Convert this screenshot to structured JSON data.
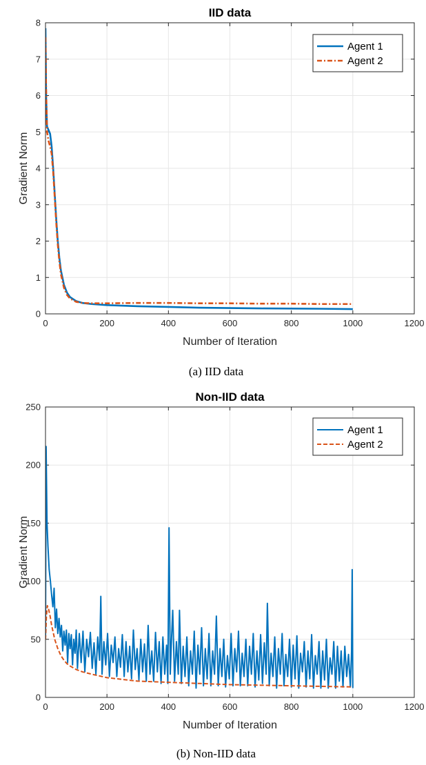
{
  "chart_data": [
    {
      "type": "line",
      "title": "IID data",
      "xlabel": "Number of Iteration",
      "ylabel": "Gradient Norm",
      "caption": "(a) IID data",
      "xlim": [
        0,
        1200
      ],
      "ylim": [
        0,
        8
      ],
      "xticks": [
        "0",
        "200",
        "400",
        "600",
        "800",
        "1000",
        "1200"
      ],
      "yticks": [
        "0",
        "1",
        "2",
        "3",
        "4",
        "5",
        "6",
        "7",
        "8"
      ],
      "grid": true,
      "legend_position": "top-right",
      "series": [
        {
          "name": "Agent 1",
          "color": "#0072BD",
          "style": "solid",
          "points": [
            [
              0,
              7.85
            ],
            [
              2,
              6.0
            ],
            [
              5,
              5.15
            ],
            [
              10,
              5.05
            ],
            [
              15,
              4.95
            ],
            [
              20,
              4.6
            ],
            [
              25,
              4.0
            ],
            [
              30,
              3.3
            ],
            [
              35,
              2.6
            ],
            [
              40,
              2.0
            ],
            [
              45,
              1.55
            ],
            [
              50,
              1.2
            ],
            [
              60,
              0.8
            ],
            [
              70,
              0.58
            ],
            [
              80,
              0.46
            ],
            [
              100,
              0.35
            ],
            [
              120,
              0.3
            ],
            [
              150,
              0.27
            ],
            [
              200,
              0.24
            ],
            [
              300,
              0.21
            ],
            [
              400,
              0.19
            ],
            [
              500,
              0.17
            ],
            [
              600,
              0.16
            ],
            [
              700,
              0.15
            ],
            [
              800,
              0.145
            ],
            [
              900,
              0.14
            ],
            [
              1000,
              0.13
            ]
          ]
        },
        {
          "name": "Agent 2",
          "color": "#D95319",
          "style": "dashdot",
          "points": [
            [
              0,
              7.6
            ],
            [
              2,
              6.2
            ],
            [
              5,
              5.0
            ],
            [
              10,
              4.75
            ],
            [
              15,
              4.6
            ],
            [
              20,
              4.4
            ],
            [
              25,
              3.9
            ],
            [
              30,
              3.2
            ],
            [
              35,
              2.5
            ],
            [
              40,
              1.9
            ],
            [
              45,
              1.45
            ],
            [
              50,
              1.1
            ],
            [
              60,
              0.72
            ],
            [
              70,
              0.52
            ],
            [
              80,
              0.42
            ],
            [
              100,
              0.33
            ],
            [
              120,
              0.3
            ],
            [
              150,
              0.29
            ],
            [
              200,
              0.29
            ],
            [
              300,
              0.3
            ],
            [
              400,
              0.3
            ],
            [
              500,
              0.29
            ],
            [
              600,
              0.29
            ],
            [
              700,
              0.28
            ],
            [
              800,
              0.28
            ],
            [
              900,
              0.27
            ],
            [
              1000,
              0.27
            ]
          ]
        }
      ]
    },
    {
      "type": "line",
      "title": "Non-IID data",
      "xlabel": "Number of Iteration",
      "ylabel": "Gradient Norm",
      "caption": "(b) Non-IID data",
      "xlim": [
        0,
        1200
      ],
      "ylim": [
        0,
        250
      ],
      "xticks": [
        "0",
        "200",
        "400",
        "600",
        "800",
        "1000",
        "1200"
      ],
      "yticks": [
        "0",
        "50",
        "100",
        "150",
        "200",
        "250"
      ],
      "grid": true,
      "legend_position": "top-right",
      "series": [
        {
          "name": "Agent 1",
          "color": "#0072BD",
          "style": "solid",
          "points": [
            [
              0,
              50
            ],
            [
              2,
              216
            ],
            [
              5,
              150
            ],
            [
              8,
              130
            ],
            [
              12,
              110
            ],
            [
              16,
              100
            ],
            [
              20,
              88
            ],
            [
              24,
              78
            ],
            [
              28,
              94
            ],
            [
              32,
              60
            ],
            [
              36,
              76
            ],
            [
              40,
              55
            ],
            [
              44,
              68
            ],
            [
              48,
              52
            ],
            [
              52,
              62
            ],
            [
              56,
              40
            ],
            [
              60,
              57
            ],
            [
              64,
              45
            ],
            [
              68,
              58
            ],
            [
              72,
              30
            ],
            [
              76,
              55
            ],
            [
              80,
              42
            ],
            [
              84,
              54
            ],
            [
              88,
              28
            ],
            [
              92,
              50
            ],
            [
              96,
              38
            ],
            [
              100,
              58
            ],
            [
              104,
              25
            ],
            [
              110,
              55
            ],
            [
              116,
              30
            ],
            [
              122,
              57
            ],
            [
              128,
              22
            ],
            [
              134,
              50
            ],
            [
              140,
              35
            ],
            [
              146,
              56
            ],
            [
              152,
              25
            ],
            [
              158,
              47
            ],
            [
              164,
              20
            ],
            [
              170,
              52
            ],
            [
              176,
              32
            ],
            [
              180,
              87
            ],
            [
              184,
              20
            ],
            [
              190,
              48
            ],
            [
              196,
              28
            ],
            [
              202,
              55
            ],
            [
              208,
              18
            ],
            [
              214,
              45
            ],
            [
              220,
              30
            ],
            [
              226,
              52
            ],
            [
              232,
              18
            ],
            [
              238,
              42
            ],
            [
              244,
              26
            ],
            [
              250,
              54
            ],
            [
              256,
              18
            ],
            [
              262,
              48
            ],
            [
              268,
              22
            ],
            [
              274,
              44
            ],
            [
              280,
              16
            ],
            [
              286,
              58
            ],
            [
              292,
              24
            ],
            [
              298,
              42
            ],
            [
              304,
              15
            ],
            [
              310,
              50
            ],
            [
              316,
              22
            ],
            [
              322,
              46
            ],
            [
              328,
              14
            ],
            [
              334,
              62
            ],
            [
              340,
              20
            ],
            [
              346,
              40
            ],
            [
              352,
              14
            ],
            [
              358,
              56
            ],
            [
              364,
              22
            ],
            [
              370,
              48
            ],
            [
              376,
              12
            ],
            [
              382,
              52
            ],
            [
              388,
              20
            ],
            [
              394,
              45
            ],
            [
              398,
              12
            ],
            [
              402,
              146
            ],
            [
              406,
              20
            ],
            [
              410,
              50
            ],
            [
              414,
              75
            ],
            [
              420,
              14
            ],
            [
              426,
              48
            ],
            [
              432,
              20
            ],
            [
              436,
              75
            ],
            [
              442,
              12
            ],
            [
              448,
              44
            ],
            [
              454,
              18
            ],
            [
              460,
              52
            ],
            [
              466,
              10
            ],
            [
              472,
              40
            ],
            [
              478,
              20
            ],
            [
              484,
              57
            ],
            [
              490,
              8
            ],
            [
              496,
              45
            ],
            [
              502,
              20
            ],
            [
              508,
              60
            ],
            [
              514,
              10
            ],
            [
              520,
              42
            ],
            [
              526,
              16
            ],
            [
              532,
              55
            ],
            [
              538,
              10
            ],
            [
              544,
              40
            ],
            [
              550,
              20
            ],
            [
              556,
              70
            ],
            [
              562,
              10
            ],
            [
              568,
              42
            ],
            [
              574,
              18
            ],
            [
              580,
              50
            ],
            [
              586,
              9
            ],
            [
              592,
              36
            ],
            [
              598,
              16
            ],
            [
              604,
              55
            ],
            [
              610,
              10
            ],
            [
              616,
              42
            ],
            [
              622,
              22
            ],
            [
              628,
              57
            ],
            [
              634,
              10
            ],
            [
              640,
              38
            ],
            [
              646,
              18
            ],
            [
              652,
              50
            ],
            [
              658,
              10
            ],
            [
              664,
              44
            ],
            [
              670,
              20
            ],
            [
              676,
              55
            ],
            [
              682,
              9
            ],
            [
              688,
              40
            ],
            [
              694,
              15
            ],
            [
              700,
              54
            ],
            [
              706,
              12
            ],
            [
              712,
              47
            ],
            [
              718,
              20
            ],
            [
              722,
              81
            ],
            [
              728,
              10
            ],
            [
              734,
              38
            ],
            [
              740,
              18
            ],
            [
              746,
              52
            ],
            [
              752,
              8
            ],
            [
              758,
              42
            ],
            [
              764,
              20
            ],
            [
              770,
              55
            ],
            [
              776,
              10
            ],
            [
              782,
              37
            ],
            [
              788,
              18
            ],
            [
              794,
              50
            ],
            [
              800,
              9
            ],
            [
              806,
              45
            ],
            [
              812,
              16
            ],
            [
              818,
              53
            ],
            [
              824,
              8
            ],
            [
              830,
              38
            ],
            [
              836,
              22
            ],
            [
              842,
              48
            ],
            [
              848,
              9
            ],
            [
              854,
              40
            ],
            [
              860,
              16
            ],
            [
              866,
              54
            ],
            [
              872,
              8
            ],
            [
              878,
              36
            ],
            [
              884,
              20
            ],
            [
              890,
              48
            ],
            [
              896,
              8
            ],
            [
              902,
              40
            ],
            [
              908,
              15
            ],
            [
              914,
              50
            ],
            [
              920,
              8
            ],
            [
              926,
              34
            ],
            [
              932,
              20
            ],
            [
              938,
              48
            ],
            [
              944,
              8
            ],
            [
              950,
              44
            ],
            [
              956,
              14
            ],
            [
              962,
              40
            ],
            [
              968,
              9
            ],
            [
              974,
              44
            ],
            [
              980,
              18
            ],
            [
              986,
              37
            ],
            [
              992,
              9
            ],
            [
              996,
              40
            ],
            [
              998,
              110
            ],
            [
              1000,
              8
            ]
          ]
        },
        {
          "name": "Agent 2",
          "color": "#D95319",
          "style": "dashed",
          "points": [
            [
              0,
              50
            ],
            [
              3,
              70
            ],
            [
              6,
              79
            ],
            [
              10,
              76
            ],
            [
              15,
              70
            ],
            [
              20,
              62
            ],
            [
              30,
              50
            ],
            [
              40,
              42
            ],
            [
              50,
              36
            ],
            [
              60,
              32
            ],
            [
              70,
              29
            ],
            [
              80,
              27
            ],
            [
              100,
              24
            ],
            [
              120,
              22
            ],
            [
              150,
              20
            ],
            [
              200,
              17
            ],
            [
              250,
              15.5
            ],
            [
              300,
              14
            ],
            [
              350,
              13.5
            ],
            [
              400,
              13
            ],
            [
              450,
              12.5
            ],
            [
              500,
              12
            ],
            [
              550,
              11.5
            ],
            [
              600,
              11
            ],
            [
              700,
              10.5
            ],
            [
              800,
              10
            ],
            [
              900,
              9.5
            ],
            [
              1000,
              9
            ]
          ]
        }
      ]
    }
  ]
}
